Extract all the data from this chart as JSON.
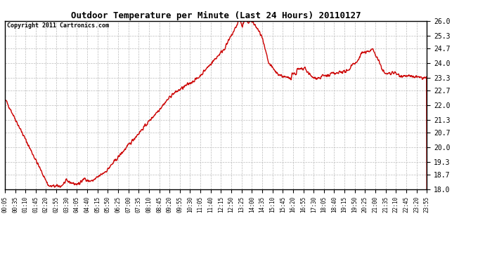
{
  "title": "Outdoor Temperature per Minute (Last 24 Hours) 20110127",
  "copyright": "Copyright 2011 Cartronics.com",
  "line_color": "#cc0000",
  "bg_color": "#ffffff",
  "plot_bg_color": "#ffffff",
  "grid_color": "#bbbbbb",
  "ylim": [
    18.0,
    26.0
  ],
  "yticks": [
    18.0,
    18.7,
    19.3,
    20.0,
    20.7,
    21.3,
    22.0,
    22.7,
    23.3,
    24.0,
    24.7,
    25.3,
    26.0
  ],
  "xtick_labels": [
    "00:05",
    "00:35",
    "01:10",
    "01:45",
    "02:20",
    "02:55",
    "03:30",
    "04:05",
    "04:40",
    "05:15",
    "05:50",
    "06:25",
    "07:00",
    "07:35",
    "08:10",
    "08:45",
    "09:20",
    "09:55",
    "10:30",
    "11:05",
    "11:40",
    "12:15",
    "12:50",
    "13:25",
    "14:00",
    "14:35",
    "15:10",
    "15:45",
    "16:20",
    "16:55",
    "17:30",
    "18:05",
    "18:40",
    "19:15",
    "19:50",
    "20:25",
    "21:00",
    "21:35",
    "22:10",
    "22:45",
    "23:20",
    "23:55"
  ],
  "num_points": 1440,
  "line_width": 1.0,
  "figsize": [
    6.9,
    3.75
  ],
  "dpi": 100
}
